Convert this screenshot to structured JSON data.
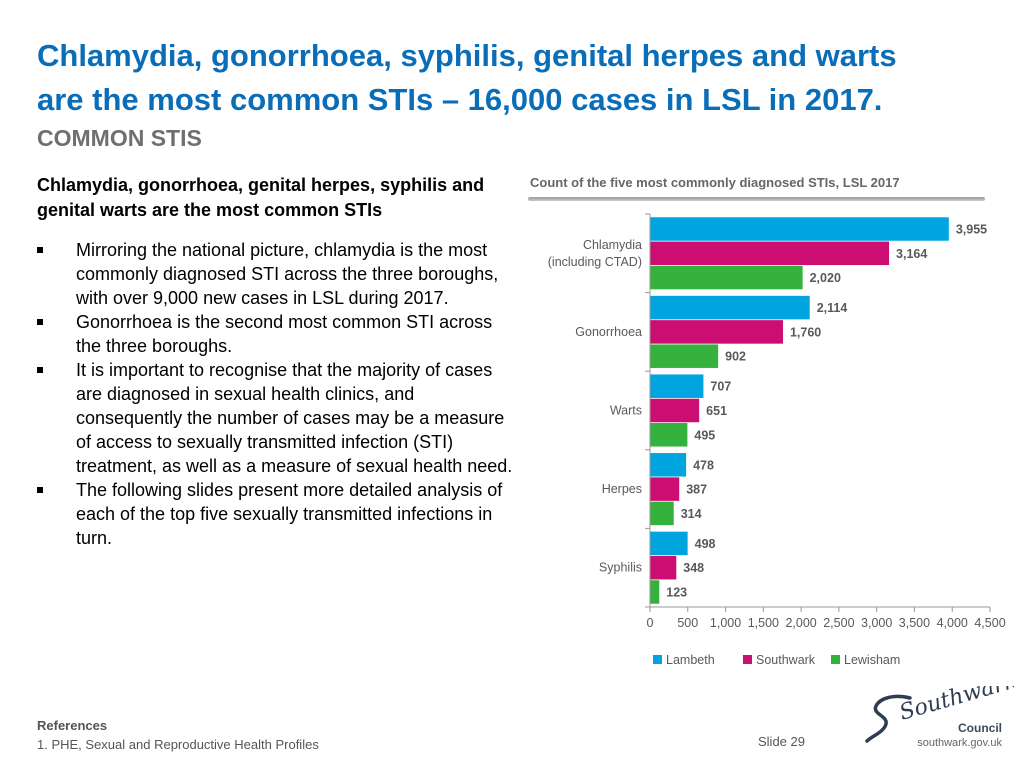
{
  "title": {
    "line1": "Chlamydia, gonorrhoea, syphilis, genital herpes and warts",
    "line2": "are the most common STIs – 16,000 cases in LSL in 2017."
  },
  "subtitle": "COMMON STIS",
  "lead": "Chlamydia, gonorrhoea, genital herpes, syphilis and genital warts are the most common STIs",
  "bullets": [
    "Mirroring the national picture, chlamydia is the most commonly diagnosed STI across the three boroughs, with over 9,000 new cases in LSL during 2017.",
    "Gonorrhoea is the second most common STI across the three boroughs.",
    "It is important to recognise that the majority of cases are diagnosed in sexual health clinics, and consequently the number of cases may be a measure of access to sexually transmitted infection (STI) treatment, as well as a measure of sexual health need.",
    "The following slides present more detailed analysis of each of the top five sexually transmitted infections in turn."
  ],
  "chart_data": {
    "type": "bar",
    "orientation": "horizontal",
    "title": "Count of the five most commonly diagnosed STIs, LSL 2017",
    "categories": [
      "Chlamydia\n(including CTAD)",
      "Gonorrhoea",
      "Warts",
      "Herpes",
      "Syphilis"
    ],
    "series": [
      {
        "name": "Lambeth",
        "color": "#00a5df",
        "values": [
          3955,
          2114,
          707,
          478,
          498
        ],
        "labels": [
          "3,955",
          "2,114",
          "707",
          "478",
          "498"
        ]
      },
      {
        "name": "Southwark",
        "color": "#cc0d72",
        "values": [
          3164,
          1760,
          651,
          387,
          348
        ],
        "labels": [
          "3,164",
          "1,760",
          "651",
          "387",
          "348"
        ]
      },
      {
        "name": "Lewisham",
        "color": "#35b13d",
        "values": [
          2020,
          902,
          495,
          314,
          123
        ],
        "labels": [
          "2,020",
          "902",
          "495",
          "314",
          "123"
        ]
      }
    ],
    "xlim": [
      0,
      4500
    ],
    "xticks": [
      0,
      500,
      1000,
      1500,
      2000,
      2500,
      3000,
      3500,
      4000,
      4500
    ],
    "xtick_labels": [
      "0",
      "500",
      "1,000",
      "1,500",
      "2,000",
      "2,500",
      "3,000",
      "3,500",
      "4,000",
      "4,500"
    ],
    "grid": false,
    "legend_position": "bottom"
  },
  "references": {
    "title": "References",
    "item": "1.   PHE, Sexual and Reproductive Health Profiles"
  },
  "slide_label": "Slide 29",
  "logo": {
    "wordmark": "Southwark",
    "council": "Council",
    "url": "southwark.gov.uk"
  }
}
